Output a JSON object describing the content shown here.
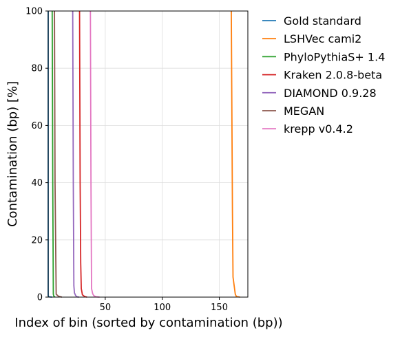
{
  "chart_data": {
    "type": "line",
    "title": "",
    "xlabel": "Index of bin (sorted by contamination (bp))",
    "ylabel": "Contamination (bp) [%]",
    "xlim": [
      0,
      175
    ],
    "ylim": [
      0,
      100
    ],
    "xticks": [
      50,
      100,
      150
    ],
    "yticks": [
      0,
      20,
      40,
      60,
      80,
      100
    ],
    "grid": true,
    "legend_placement": "outside-right",
    "series": [
      {
        "name": "Gold standard",
        "color": "#1f77b4",
        "x": [
          0,
          0,
          0.5,
          3.5
        ],
        "y": [
          100,
          0.5,
          0.1,
          0
        ]
      },
      {
        "name": "LSHVec cami2",
        "color": "#ff7f0e",
        "x": [
          160.5,
          161.5,
          162,
          163,
          164,
          165,
          168
        ],
        "y": [
          100,
          30,
          7,
          4,
          1,
          0.2,
          0
        ]
      },
      {
        "name": "PhyloPythiaS+ 1.4",
        "color": "#2ca02c",
        "x": [
          3.5,
          4,
          4.5,
          5,
          6
        ],
        "y": [
          100,
          40,
          1,
          0.3,
          0
        ]
      },
      {
        "name": "Kraken 2.0.8-beta",
        "color": "#d62728",
        "x": [
          27.5,
          28,
          28.5,
          29,
          30,
          32,
          34
        ],
        "y": [
          100,
          40,
          12,
          3,
          0.8,
          0.2,
          0
        ]
      },
      {
        "name": "DIAMOND 0.9.28",
        "color": "#9467bd",
        "x": [
          21.5,
          22,
          22.5,
          23,
          24,
          25,
          27
        ],
        "y": [
          100,
          40,
          4,
          1.5,
          0.6,
          0.1,
          0
        ]
      },
      {
        "name": "MEGAN",
        "color": "#8c564b",
        "x": [
          5.5,
          6,
          7,
          9,
          12
        ],
        "y": [
          100,
          40,
          1,
          0.3,
          0
        ]
      },
      {
        "name": "krepp v0.4.2",
        "color": "#e377c2",
        "x": [
          37,
          37.5,
          38,
          39,
          40,
          42,
          45
        ],
        "y": [
          100,
          40,
          3,
          1.2,
          0.5,
          0.1,
          0
        ]
      }
    ]
  }
}
